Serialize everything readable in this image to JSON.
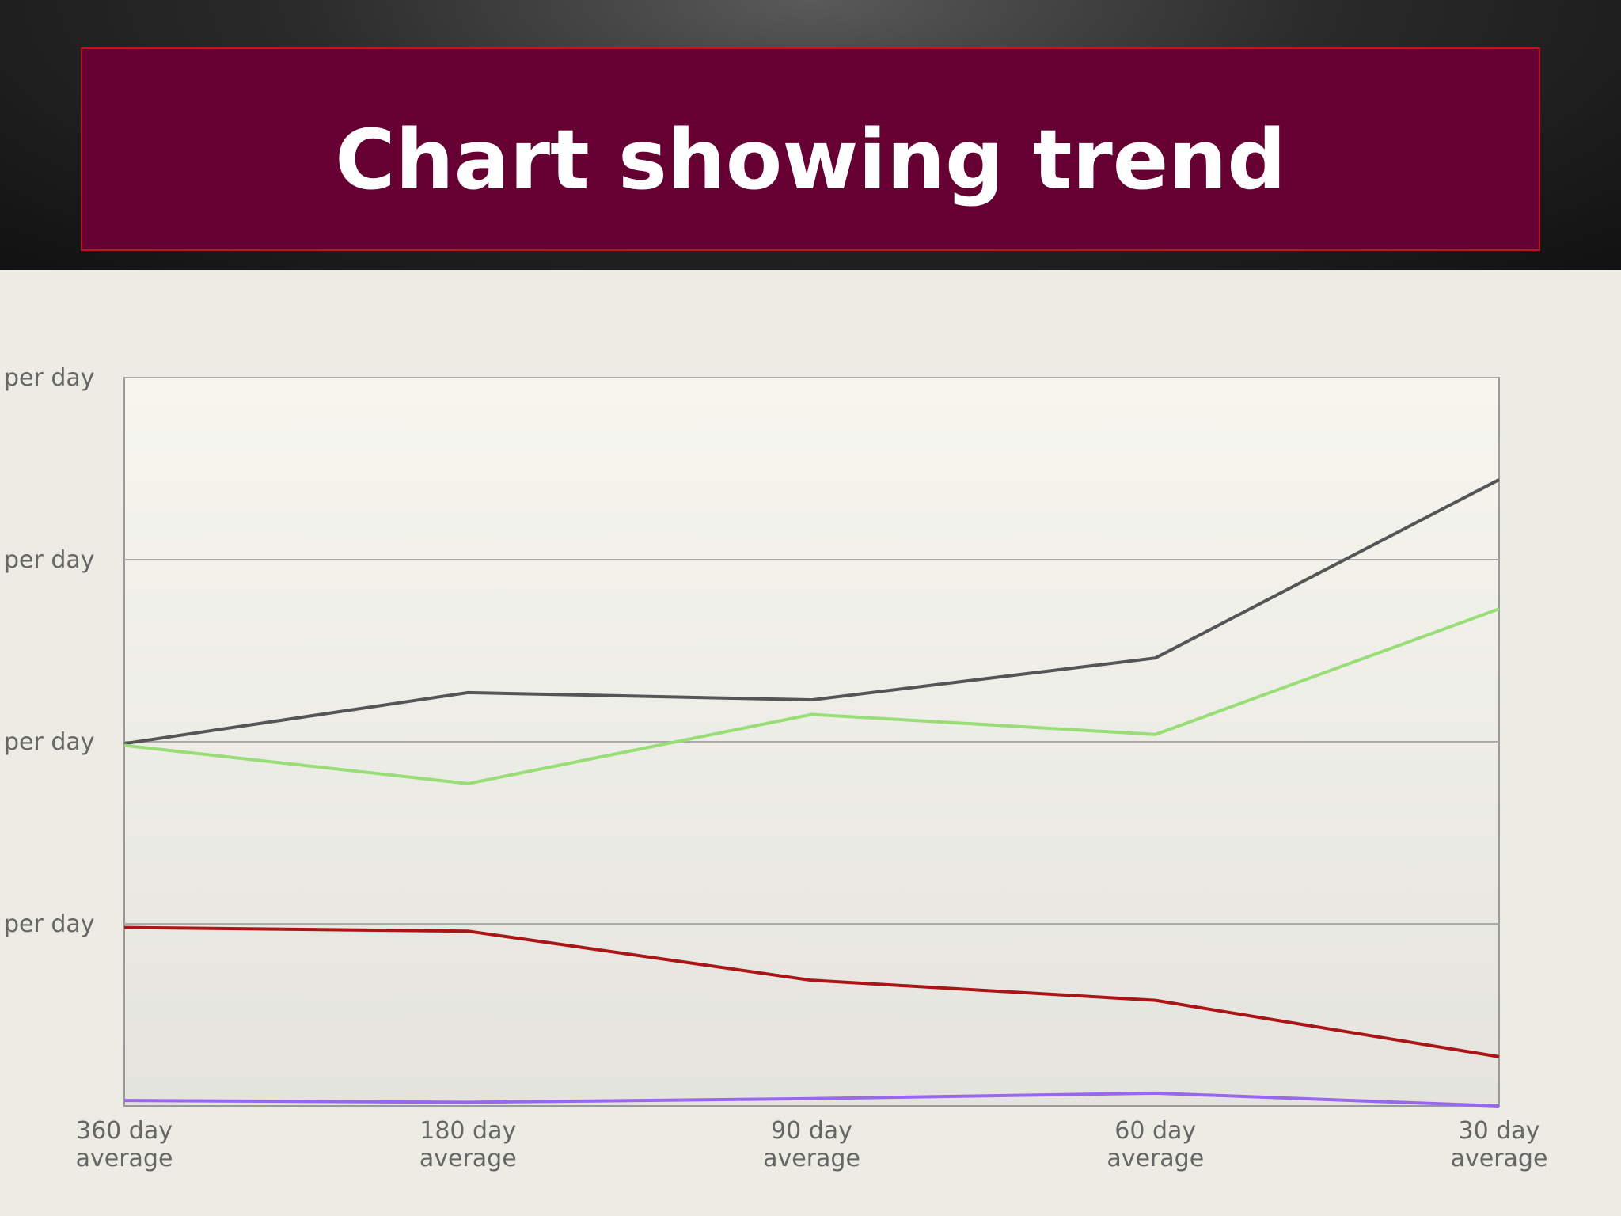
{
  "header": {
    "title": "Chart showing trend"
  },
  "chart_data": {
    "type": "line",
    "categories": [
      [
        "360 day",
        "average"
      ],
      [
        "180 day",
        "average"
      ],
      [
        "90 day",
        "average"
      ],
      [
        "60 day",
        "average"
      ],
      [
        "30 day",
        "average"
      ]
    ],
    "series": [
      {
        "color": "#555555",
        "values": [
          1.99,
          2.27,
          2.23,
          2.46,
          3.44
        ]
      },
      {
        "color": "#99dd77",
        "values": [
          1.98,
          1.77,
          2.15,
          2.04,
          2.73
        ]
      },
      {
        "color": "#aa1515",
        "values": [
          0.98,
          0.96,
          0.69,
          0.58,
          0.27
        ]
      },
      {
        "color": "#9966ee",
        "values": [
          0.03,
          0.02,
          0.04,
          0.07,
          0.0
        ]
      }
    ],
    "ylim": [
      0,
      4
    ],
    "yticks": [
      {
        "value": 1,
        "label": "per day"
      },
      {
        "value": 2,
        "label": "per day"
      },
      {
        "value": 3,
        "label": "per day"
      },
      {
        "value": 4,
        "label": "per day"
      }
    ],
    "grid": true
  }
}
